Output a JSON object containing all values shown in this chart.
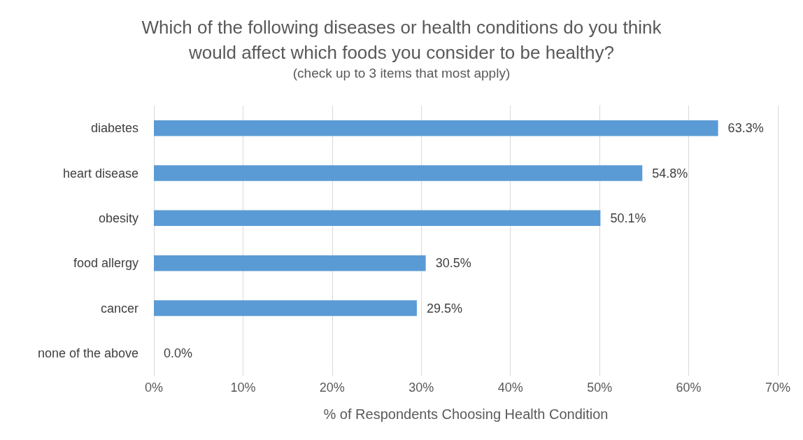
{
  "chart_data": {
    "type": "bar",
    "orientation": "horizontal",
    "title": "Which of the following diseases or health conditions do you think\nwould affect which foods you consider to be healthy?",
    "subtitle": "(check up to 3 items that most apply)",
    "xlabel": "% of Respondents Choosing Health Condition",
    "categories": [
      "diabetes",
      "heart disease",
      "obesity",
      "food allergy",
      "cancer",
      "none of the above"
    ],
    "values": [
      63.3,
      54.8,
      50.1,
      30.5,
      29.5,
      0.0
    ],
    "value_labels": [
      "63.3%",
      "54.8%",
      "50.1%",
      "30.5%",
      "29.5%",
      "0.0%"
    ],
    "color": "#5b9bd5",
    "xlim": [
      0,
      70
    ],
    "xticks": [
      {
        "value": 0,
        "label": "0%"
      },
      {
        "value": 10,
        "label": "10%"
      },
      {
        "value": 20,
        "label": "20%"
      },
      {
        "value": 30,
        "label": "30%"
      },
      {
        "value": 40,
        "label": "40%"
      },
      {
        "value": 50,
        "label": "50%"
      },
      {
        "value": 60,
        "label": "60%"
      },
      {
        "value": 70,
        "label": "70%"
      }
    ],
    "grid": "x"
  }
}
